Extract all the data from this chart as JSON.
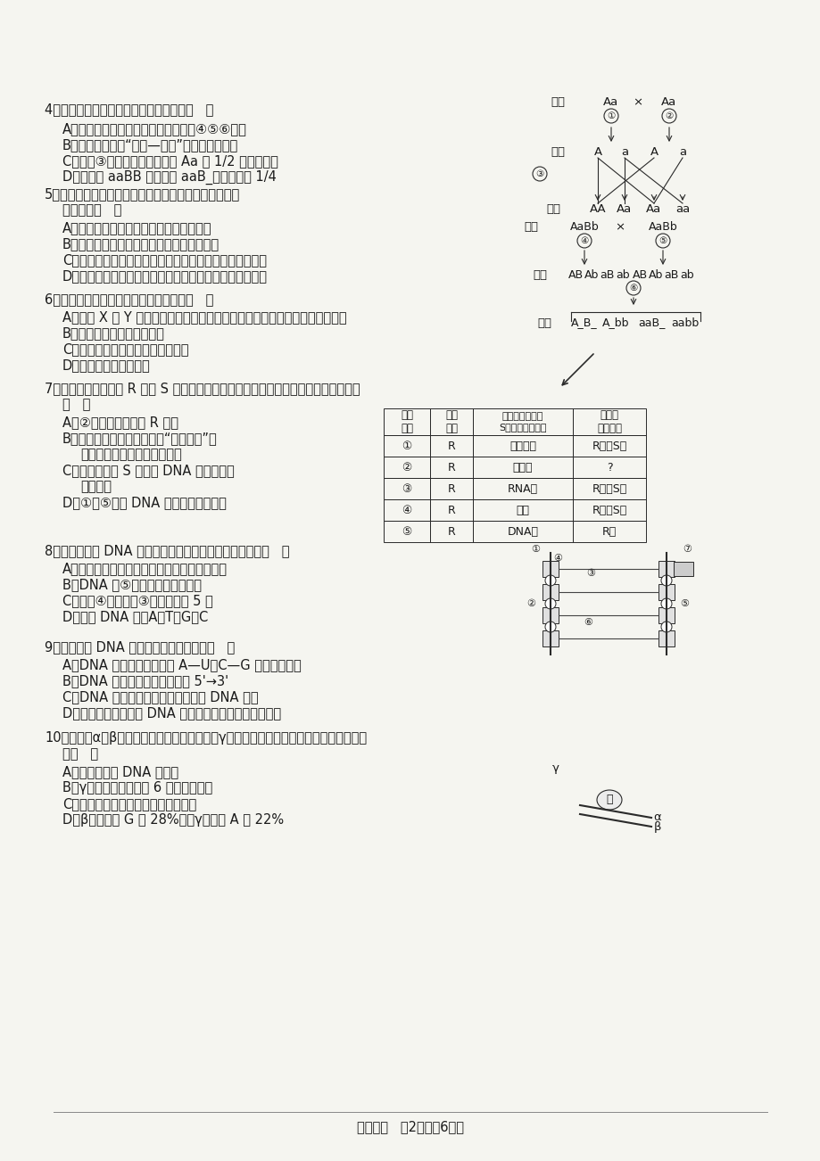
{
  "bg_color": "#f5f5f0",
  "text_color": "#2a2a2a",
  "title_bottom": "高一生物   第2页（共6页）",
  "q4_line1": "4．有关下列遗传图解的叙述，正确的是（   ）",
  "q4_a": "A．基因的自由组合定律发生在图中的④⑤⑥过程",
  "q4_b": "B．以上过程属于“假说—演绎”法中的验证过程",
  "q4_c": "C．图中③过程的随机性是子代 Aa 占 1/2 的原因之一",
  "q4_d": "D．子代中 aaBB 的个体占 aaB_中的比例为 1/4",
  "q5_line1": "5．基因和染色体的行为存在平行关系，下列相关表述，",
  "q5_line2": "错误的是（   ）",
  "q5_a": "A．复制的两个基因随染色单体分开而分开",
  "q5_b": "B．同源染色体分离时，等位基因也随之分离",
  "q5_c": "C．非同源染色体数量越多，非等位基因组合的种类也越多",
  "q5_d": "D．非同源染色体自由组合，使所有非等位基因也自由组合",
  "q6_line1": "6．下列关于伴性遗传的叙述，错误的是（   ）",
  "q6_a": "A．位于 X 或 Y 染色体上的基因，其控制的性状与性别的形成都有一定的关系",
  "q6_b": "B．遗传上总是和性别相关联",
  "q6_c": "C．伴性遗传也遵循孟德尔遗传定律",
  "q6_d": "D．表现上具有性别差异",
  "q7_line1": "7．艾弗里和其同事用 R 型和 S 型肺炎链球菌进行实验，结果如下表。从表中内容可知",
  "q7_line2": "（   ）",
  "q7_a": "A．②培养皿中只出现 R 型菌",
  "q7_b1": "B．该实验控制自变量采用了“加法原理”，",
  "q7_b2": "因为不同组中加入了不同的酶",
  "q7_c1": "C．该实验说明 S 型菌的 DNA 很可能就是",
  "q7_c2": "转化因子",
  "q7_d": "D．①～⑤说明 DNA 是主要的遗传物质",
  "q8_line1": "8．如图所示为 DNA 的某一片段，下列相关叙述正确的是（   ）",
  "q8_a": "A．每个脱氧核糖上均连着两个磷酸和一个碱基",
  "q8_b": "B．DNA 中⑤相对含量越多越稳定",
  "q8_c": "C．图中④的种类由③决定，共有 5 种",
  "q8_d": "D．双链 DNA 中，A＋T＝G＋C",
  "q9_line1": "9．下列关于 DNA 复制的叙述，正确的是（   ）",
  "q9_a": "A．DNA 复制时，严格遵循 A—U、C—G 的碱基对原则",
  "q9_b": "B．DNA 子链的合成方向都是由 5'→3'",
  "q9_c": "C．DNA 分子全部解旋后才开始进行 DNA 复制",
  "q9_d": "D．脱氧核苷酸必须在 DNA 酶的作用下才能连接形成子链",
  "q10_line1": "10．如图中α、β是真核细胞某基因的两条链，γ是另外一条多核苷酸链，下列说法正确的",
  "q10_line2": "是（   ）",
  "q10_a": "A．图中的酶是 DNA 聚合酶",
  "q10_b": "B．γ彻底水解后能生成 6 种小分子物质",
  "q10_c": "C．若该基因，则该过程发生在分裂期",
  "q10_d": "D．β链中碱基 G 占 28%，则γ中碱基 A 占 22%"
}
